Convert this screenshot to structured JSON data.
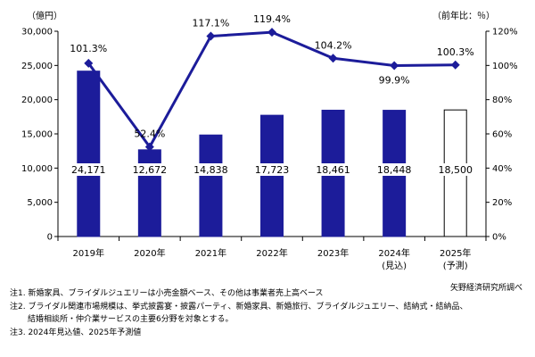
{
  "colors": {
    "bar": "#1c1c9a",
    "bar_forecast": "#ffffff",
    "line": "#1c1c9a",
    "axis": "#000000",
    "label_box": "#ffffff"
  },
  "chart_data": {
    "type": "bar+line",
    "categories": [
      [
        "2019年"
      ],
      [
        "2020年"
      ],
      [
        "2021年"
      ],
      [
        "2022年"
      ],
      [
        "2023年"
      ],
      [
        "2024年",
        "(見込)"
      ],
      [
        "2025年",
        "(予測)"
      ]
    ],
    "series": [
      {
        "type": "bar",
        "axis": "left",
        "values": [
          24171,
          12672,
          14838,
          17723,
          18461,
          18448,
          18500
        ],
        "labels": [
          "24,171",
          "12,672",
          "14,838",
          "17,723",
          "18,461",
          "18,448",
          "18,500"
        ],
        "forecast_index": 6
      },
      {
        "type": "line",
        "axis": "right",
        "values": [
          101.3,
          52.4,
          117.1,
          119.4,
          104.2,
          99.9,
          100.3
        ],
        "labels": [
          "101.3%",
          "52.4%",
          "117.1%",
          "119.4%",
          "104.2%",
          "99.9%",
          "100.3%"
        ]
      }
    ],
    "left_axis": {
      "unit": "（億円）",
      "ylim": [
        0,
        30000
      ],
      "ticks": [
        0,
        5000,
        10000,
        15000,
        20000,
        25000,
        30000
      ],
      "tick_labels": [
        "0",
        "5,000",
        "10,000",
        "15,000",
        "20,000",
        "25,000",
        "30,000"
      ]
    },
    "right_axis": {
      "unit": "（前年比：％）",
      "ylim": [
        0,
        120
      ],
      "ticks": [
        0,
        20,
        40,
        60,
        80,
        100,
        120
      ],
      "tick_labels": [
        "0%",
        "20%",
        "40%",
        "60%",
        "80%",
        "100%",
        "120%"
      ]
    },
    "grid": false,
    "legend": "none"
  },
  "source": "矢野経済研究所調べ",
  "notes": [
    "注1.  新婚家具、ブライダルジュエリーは小売金額ベース、その他は事業者売上高ベース",
    "注2.  ブライダル関連市場規模は、挙式披露宴・披露パーティ、新婚家具、新婚旅行、ブライダルジュエリー、結納式・結納品、",
    "       結婚相談所・仲介業サービスの主要6分野を対象とする。",
    "注3.  2024年見込値、2025年予測値"
  ]
}
